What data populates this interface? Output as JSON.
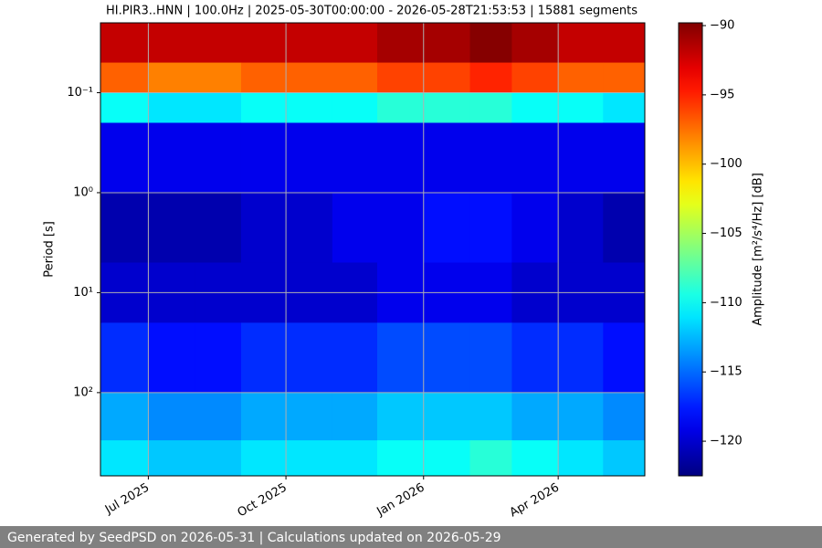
{
  "chart_data": {
    "type": "heatmap",
    "title": "HI.PIR3..HNN | 100.0Hz | 2025-05-30T00:00:00 - 2026-05-28T21:53:53 | 15881 segments",
    "ylabel": "Period [s]",
    "colorbar_label": "Amplitude [m²/s⁴/Hz] [dB]",
    "colormap": "jet",
    "grid": true,
    "y_log": true,
    "y_inverted": true,
    "xlim": [
      "2025-05-30T00:00:00",
      "2026-05-28T21:53:53"
    ],
    "xticks": [
      {
        "value": "2025-07-01",
        "label": "Jul 2025"
      },
      {
        "value": "2025-10-01",
        "label": "Oct 2025"
      },
      {
        "value": "2026-01-01",
        "label": "Jan 2026"
      },
      {
        "value": "2026-04-01",
        "label": "Apr 2026"
      }
    ],
    "ylim": [
      0.02,
      680
    ],
    "yticks": [
      {
        "value": 0.1,
        "label": "10⁻¹"
      },
      {
        "value": 1,
        "label": "10⁰"
      },
      {
        "value": 10,
        "label": "10¹"
      },
      {
        "value": 100,
        "label": "10²"
      }
    ],
    "zlim": [
      -122.5,
      -89.8
    ],
    "zticks": [
      {
        "value": -90,
        "label": "−90"
      },
      {
        "value": -95,
        "label": "−95"
      },
      {
        "value": -100,
        "label": "−100"
      },
      {
        "value": -105,
        "label": "−105"
      },
      {
        "value": -110,
        "label": "−110"
      },
      {
        "value": -115,
        "label": "−115"
      },
      {
        "value": -120,
        "label": "−120"
      }
    ],
    "x": [
      "2025-05-30",
      "2025-07-01",
      "2025-08-01",
      "2025-09-01",
      "2025-10-01",
      "2025-11-01",
      "2025-12-01",
      "2026-01-01",
      "2026-02-01",
      "2026-03-01",
      "2026-04-01",
      "2026-05-01",
      "2026-05-28T21:53:53"
    ],
    "y": [
      0.02,
      0.05,
      0.1,
      0.2,
      1,
      5,
      20,
      100,
      300,
      680
    ],
    "z": [
      [
        -92,
        -92,
        -92,
        -92,
        -92,
        -92,
        -91,
        -91,
        -90,
        -91,
        -92,
        -92
      ],
      [
        -97,
        -98,
        -98,
        -97,
        -97,
        -97,
        -96,
        -96,
        -95,
        -96,
        -97,
        -97
      ],
      [
        -110,
        -111,
        -111,
        -110,
        -110,
        -110,
        -109,
        -109,
        -109,
        -110,
        -110,
        -111
      ],
      [
        -119,
        -119,
        -119,
        -119,
        -119,
        -119,
        -119,
        -119,
        -119,
        -119,
        -119,
        -119
      ],
      [
        -121,
        -121,
        -121,
        -120,
        -120,
        -119,
        -119,
        -118,
        -118,
        -119,
        -120,
        -121
      ],
      [
        -120,
        -120,
        -120,
        -120,
        -120,
        -120,
        -119,
        -119,
        -119,
        -120,
        -120,
        -120
      ],
      [
        -117,
        -118,
        -118,
        -117,
        -117,
        -117,
        -116,
        -116,
        -116,
        -117,
        -117,
        -118
      ],
      [
        -113,
        -114,
        -114,
        -113,
        -113,
        -113,
        -112,
        -112,
        -112,
        -113,
        -113,
        -114
      ],
      [
        -111,
        -112,
        -112,
        -111,
        -111,
        -111,
        -110,
        -110,
        -109,
        -110,
        -111,
        -112
      ]
    ]
  },
  "footer": "Generated by SeedPSD on 2026-05-31 | Calculations updated on 2026-05-29"
}
